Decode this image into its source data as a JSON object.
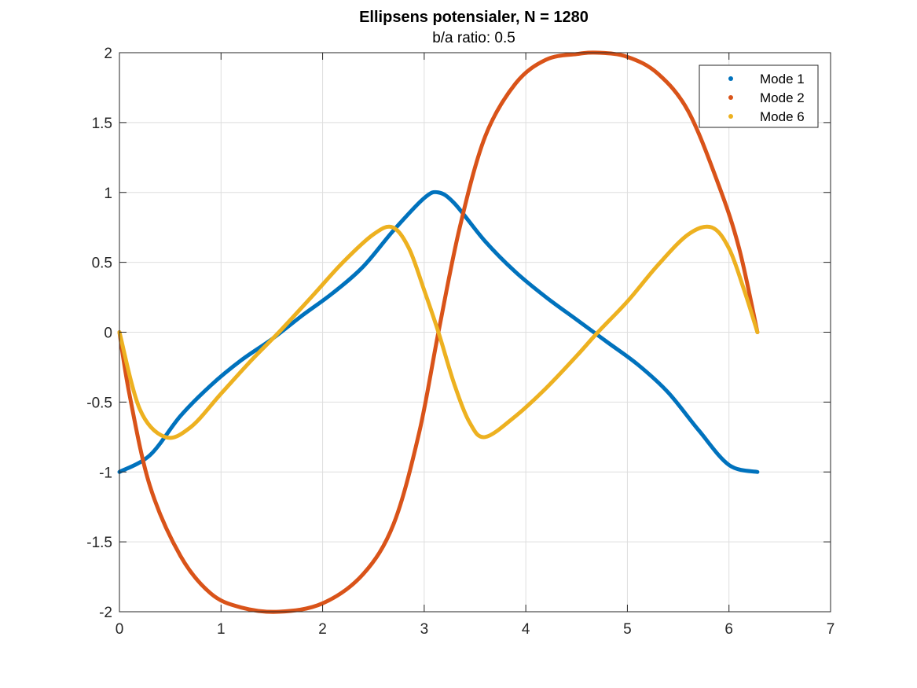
{
  "chart_data": {
    "type": "line",
    "title": "Ellipsens potensialer, N = 1280",
    "subtitle": "b/a ratio: 0.5",
    "xlabel": "",
    "ylabel": "",
    "xlim": [
      0,
      7
    ],
    "ylim": [
      -2,
      2
    ],
    "xticks": [
      0,
      1,
      2,
      3,
      4,
      5,
      6,
      7
    ],
    "yticks": [
      -2,
      -1.5,
      -1,
      -0.5,
      0,
      0.5,
      1,
      1.5,
      2
    ],
    "xtick_labels": [
      "0",
      "1",
      "2",
      "3",
      "4",
      "5",
      "6",
      "7"
    ],
    "ytick_labels": [
      "-2",
      "-1.5",
      "-1",
      "-0.5",
      "0",
      "0.5",
      "1",
      "1.5",
      "2"
    ],
    "grid": true,
    "legend_position": "top-right",
    "series": [
      {
        "name": "Mode 1",
        "color": "#0072BD",
        "x": [
          0,
          0.3,
          0.6,
          0.9,
          1.2,
          1.5,
          1.8,
          2.1,
          2.4,
          2.7,
          3.0,
          3.14,
          3.3,
          3.6,
          3.9,
          4.2,
          4.5,
          4.8,
          5.1,
          5.4,
          5.7,
          6.0,
          6.28
        ],
        "y": [
          -1.0,
          -0.88,
          -0.6,
          -0.38,
          -0.2,
          -0.05,
          0.12,
          0.28,
          0.47,
          0.73,
          0.96,
          1.0,
          0.92,
          0.65,
          0.43,
          0.25,
          0.09,
          -0.07,
          -0.23,
          -0.43,
          -0.7,
          -0.95,
          -1.0
        ]
      },
      {
        "name": "Mode 2",
        "color": "#D95319",
        "x": [
          0,
          0.1,
          0.3,
          0.6,
          0.9,
          1.2,
          1.57,
          2.0,
          2.4,
          2.7,
          2.95,
          3.14,
          3.35,
          3.6,
          3.9,
          4.2,
          4.5,
          4.71,
          5.0,
          5.3,
          5.6,
          5.9,
          6.1,
          6.28
        ],
        "y": [
          0,
          -0.45,
          -1.1,
          -1.6,
          -1.87,
          -1.97,
          -2.0,
          -1.94,
          -1.73,
          -1.37,
          -0.72,
          0,
          0.75,
          1.4,
          1.78,
          1.95,
          1.99,
          2.0,
          1.97,
          1.85,
          1.58,
          1.05,
          0.6,
          0
        ]
      },
      {
        "name": "Mode 6",
        "color": "#EDB120",
        "x": [
          0,
          0.2,
          0.45,
          0.7,
          1.0,
          1.3,
          1.57,
          1.9,
          2.2,
          2.5,
          2.69,
          2.85,
          3.0,
          3.14,
          3.3,
          3.45,
          3.6,
          3.9,
          4.2,
          4.5,
          4.71,
          5.0,
          5.3,
          5.6,
          5.83,
          6.0,
          6.15,
          6.28
        ],
        "y": [
          0,
          -0.55,
          -0.75,
          -0.68,
          -0.44,
          -0.2,
          0,
          0.26,
          0.5,
          0.7,
          0.75,
          0.6,
          0.3,
          0,
          -0.38,
          -0.65,
          -0.75,
          -0.6,
          -0.4,
          -0.17,
          0,
          0.22,
          0.48,
          0.7,
          0.75,
          0.6,
          0.3,
          0
        ]
      }
    ]
  }
}
